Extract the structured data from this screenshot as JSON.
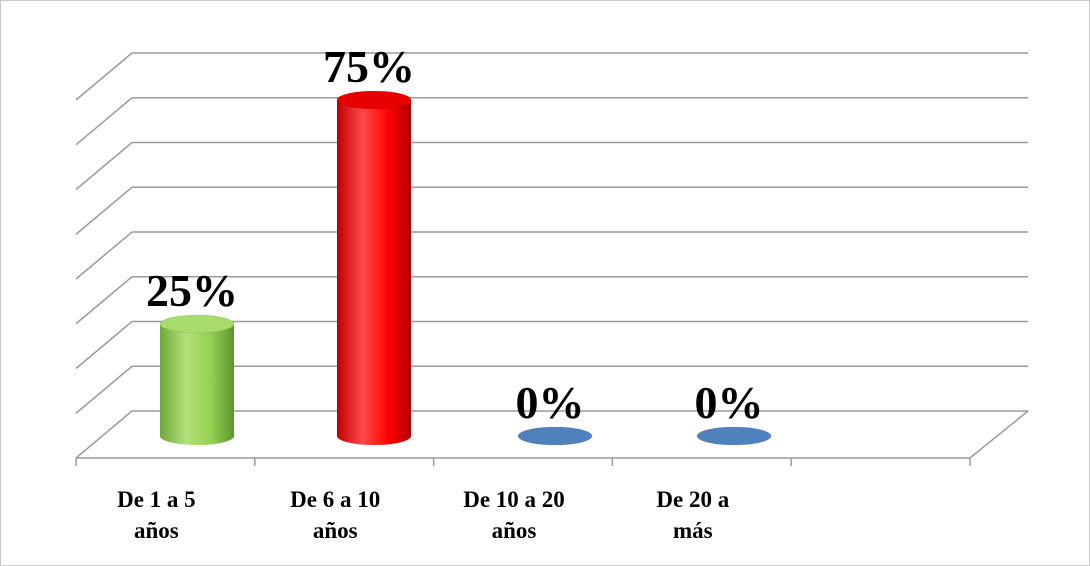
{
  "chart_data": {
    "type": "bar",
    "style": "3d-cylinder",
    "categories": [
      {
        "line1": "De 1 a 5",
        "line2": "años"
      },
      {
        "line1": "De 6 a 10",
        "line2": "años"
      },
      {
        "line1": "De 10 a  20",
        "line2": "años"
      },
      {
        "line1": "De 20 a",
        "line2": "más"
      },
      {
        "line1": "",
        "line2": ""
      }
    ],
    "values": [
      25,
      75,
      0,
      0,
      null
    ],
    "data_labels": [
      "25%",
      "75%",
      "0%",
      "0%",
      ""
    ],
    "bar_colors": [
      "#92d050",
      "#ff0000",
      "#4f81bd",
      "#4f81bd",
      ""
    ],
    "ylim": [
      0,
      80
    ],
    "gridlines": 8,
    "grid": true,
    "legend": "none",
    "title": "",
    "xlabel": "",
    "ylabel": ""
  }
}
